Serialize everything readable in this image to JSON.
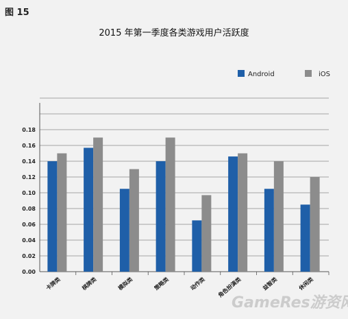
{
  "figure_label": "图 15",
  "watermark": "GameRes游资网",
  "colors": {
    "android": "#1f5fa8",
    "ios": "#8c8c8c",
    "grid": "#8a8a8a",
    "axis": "#555555"
  },
  "chart_data": {
    "type": "bar",
    "title": "2015 年第一季度各类游戏用户活跃度",
    "xlabel": "",
    "ylabel": "",
    "ylim": [
      0,
      0.2
    ],
    "yticks": [
      "0.00",
      "0.02",
      "0.04",
      "0.06",
      "0.08",
      "0.10",
      "0.12",
      "0.14",
      "0.16",
      "0.18"
    ],
    "grid": true,
    "legend_position": "top-right",
    "categories": [
      "卡牌类",
      "棋牌类",
      "模拟类",
      "策略类",
      "动作类",
      "角色扮演类",
      "益智类",
      "休闲类"
    ],
    "series": [
      {
        "name": "Android",
        "values": [
          0.14,
          0.157,
          0.105,
          0.14,
          0.065,
          0.146,
          0.105,
          0.085
        ]
      },
      {
        "name": "iOS",
        "values": [
          0.15,
          0.17,
          0.13,
          0.17,
          0.097,
          0.15,
          0.14,
          0.12
        ]
      }
    ]
  }
}
